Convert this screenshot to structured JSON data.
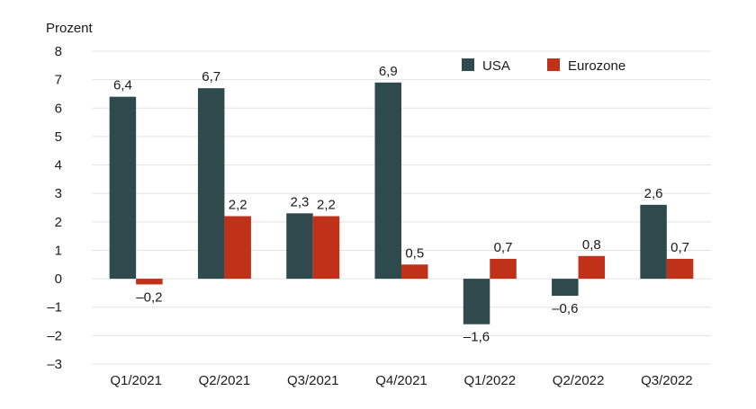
{
  "chart_data": {
    "type": "bar",
    "unit_label": "Prozent",
    "categories": [
      "Q1/2021",
      "Q2/2021",
      "Q3/2021",
      "Q4/2021",
      "Q1/2022",
      "Q2/2022",
      "Q3/2022"
    ],
    "series": [
      {
        "name": "USA",
        "color": "#2f4a4d",
        "values": [
          6.4,
          6.7,
          2.3,
          6.9,
          -1.6,
          -0.6,
          2.6
        ],
        "labels": [
          "6,4",
          "6,7",
          "2,3",
          "6,9",
          "–1,6",
          "–0,6",
          "2,6"
        ]
      },
      {
        "name": "Eurozone",
        "color": "#c0311a",
        "values": [
          -0.2,
          2.2,
          2.2,
          0.5,
          0.7,
          0.8,
          0.7
        ],
        "labels": [
          "–0,2",
          "2,2",
          "2,2",
          "0,5",
          "0,7",
          "0,8",
          "0,7"
        ]
      }
    ],
    "ylim": [
      -3,
      8
    ],
    "yticks": [
      8,
      7,
      6,
      5,
      4,
      3,
      2,
      1,
      0,
      -1,
      -2,
      -3
    ],
    "ytick_labels": [
      "8",
      "7",
      "6",
      "5",
      "4",
      "3",
      "2",
      "1",
      "0",
      "–1",
      "–2",
      "–3"
    ],
    "grid": true,
    "legend": "top-right"
  }
}
